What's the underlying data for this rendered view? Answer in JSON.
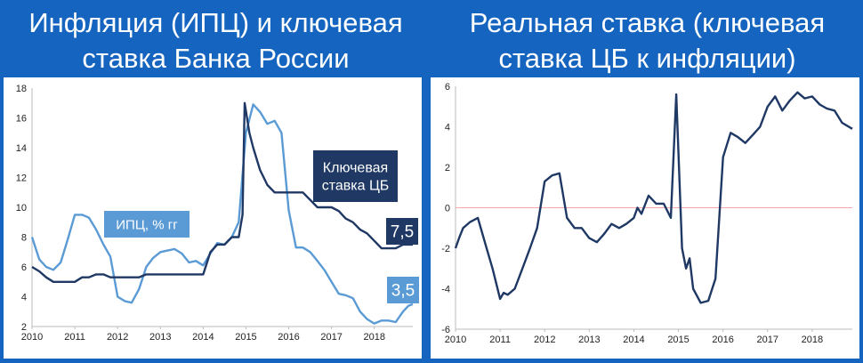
{
  "titles": {
    "left": "Инфляция (ИПЦ) и ключевая ставка Банка России",
    "right": "Реальная ставка (ключевая ставка ЦБ к инфляции)"
  },
  "chart_data": [
    {
      "type": "line",
      "title": "Инфляция (ИПЦ) и ключевая ставка Банка России",
      "ylim": [
        2,
        18
      ],
      "xlim": [
        2010,
        2018.9
      ],
      "yticks": [
        2,
        4,
        6,
        8,
        10,
        12,
        14,
        16,
        18
      ],
      "xticks": [
        "2010",
        "2011",
        "2012",
        "2013",
        "2014",
        "2015",
        "2016",
        "2017",
        "2018"
      ],
      "grid": false,
      "colors": {
        "cpi": "#5b9bd5",
        "key_rate": "#1f3864"
      },
      "series": [
        {
          "name": "ИПЦ, % гг",
          "label_box": "ИПЦ, % гг",
          "end_label": "3,5",
          "points": [
            [
              2010.0,
              8.0
            ],
            [
              2010.17,
              6.5
            ],
            [
              2010.33,
              6.0
            ],
            [
              2010.5,
              5.8
            ],
            [
              2010.67,
              6.3
            ],
            [
              2010.83,
              7.8
            ],
            [
              2011.0,
              9.5
            ],
            [
              2011.17,
              9.5
            ],
            [
              2011.33,
              9.3
            ],
            [
              2011.5,
              8.5
            ],
            [
              2011.67,
              7.5
            ],
            [
              2011.83,
              6.7
            ],
            [
              2012.0,
              4.0
            ],
            [
              2012.17,
              3.7
            ],
            [
              2012.33,
              3.6
            ],
            [
              2012.5,
              4.5
            ],
            [
              2012.67,
              6.0
            ],
            [
              2012.83,
              6.6
            ],
            [
              2013.0,
              7.0
            ],
            [
              2013.17,
              7.1
            ],
            [
              2013.33,
              7.2
            ],
            [
              2013.5,
              6.9
            ],
            [
              2013.67,
              6.3
            ],
            [
              2013.83,
              6.4
            ],
            [
              2014.0,
              6.1
            ],
            [
              2014.17,
              6.9
            ],
            [
              2014.33,
              7.6
            ],
            [
              2014.5,
              7.5
            ],
            [
              2014.67,
              8.0
            ],
            [
              2014.83,
              9.0
            ],
            [
              2015.0,
              15.0
            ],
            [
              2015.17,
              16.9
            ],
            [
              2015.33,
              16.4
            ],
            [
              2015.5,
              15.6
            ],
            [
              2015.67,
              15.8
            ],
            [
              2015.83,
              15.0
            ],
            [
              2016.0,
              9.8
            ],
            [
              2016.17,
              7.3
            ],
            [
              2016.33,
              7.3
            ],
            [
              2016.5,
              7.0
            ],
            [
              2016.67,
              6.4
            ],
            [
              2016.83,
              5.8
            ],
            [
              2017.0,
              5.0
            ],
            [
              2017.17,
              4.2
            ],
            [
              2017.33,
              4.1
            ],
            [
              2017.5,
              3.9
            ],
            [
              2017.67,
              3.0
            ],
            [
              2017.83,
              2.5
            ],
            [
              2018.0,
              2.2
            ],
            [
              2018.17,
              2.4
            ],
            [
              2018.33,
              2.4
            ],
            [
              2018.5,
              2.3
            ],
            [
              2018.67,
              3.0
            ],
            [
              2018.8,
              3.4
            ],
            [
              2018.9,
              3.5
            ]
          ]
        },
        {
          "name": "Ключевая ставка ЦБ",
          "label_box": "Ключевая ставка ЦБ",
          "end_label": "7,5",
          "points": [
            [
              2010.0,
              6.0
            ],
            [
              2010.17,
              5.7
            ],
            [
              2010.33,
              5.3
            ],
            [
              2010.5,
              5.0
            ],
            [
              2010.83,
              5.0
            ],
            [
              2011.0,
              5.0
            ],
            [
              2011.17,
              5.3
            ],
            [
              2011.33,
              5.3
            ],
            [
              2011.5,
              5.5
            ],
            [
              2011.67,
              5.5
            ],
            [
              2011.83,
              5.3
            ],
            [
              2012.0,
              5.3
            ],
            [
              2012.5,
              5.3
            ],
            [
              2012.67,
              5.5
            ],
            [
              2013.0,
              5.5
            ],
            [
              2013.5,
              5.5
            ],
            [
              2013.83,
              5.5
            ],
            [
              2014.0,
              5.5
            ],
            [
              2014.17,
              7.0
            ],
            [
              2014.33,
              7.5
            ],
            [
              2014.5,
              7.5
            ],
            [
              2014.67,
              8.0
            ],
            [
              2014.83,
              8.0
            ],
            [
              2014.92,
              9.5
            ],
            [
              2014.97,
              17.0
            ],
            [
              2015.08,
              15.0
            ],
            [
              2015.17,
              14.0
            ],
            [
              2015.33,
              12.5
            ],
            [
              2015.5,
              11.5
            ],
            [
              2015.67,
              11.0
            ],
            [
              2016.0,
              11.0
            ],
            [
              2016.33,
              11.0
            ],
            [
              2016.5,
              10.5
            ],
            [
              2016.67,
              10.0
            ],
            [
              2017.0,
              10.0
            ],
            [
              2017.17,
              9.75
            ],
            [
              2017.33,
              9.25
            ],
            [
              2017.5,
              9.0
            ],
            [
              2017.67,
              8.5
            ],
            [
              2017.83,
              8.25
            ],
            [
              2018.0,
              7.75
            ],
            [
              2018.17,
              7.25
            ],
            [
              2018.5,
              7.25
            ],
            [
              2018.67,
              7.5
            ],
            [
              2018.9,
              7.5
            ]
          ]
        }
      ]
    },
    {
      "type": "line",
      "title": "Реальная ставка (ключевая ставка ЦБ к инфляции)",
      "ylim": [
        -6,
        6
      ],
      "xlim": [
        2010,
        2018.9
      ],
      "yticks": [
        -6,
        -4,
        -2,
        0,
        2,
        4,
        6
      ],
      "xticks": [
        "2010",
        "2011",
        "2012",
        "2013",
        "2014",
        "2015",
        "2016",
        "2017",
        "2018"
      ],
      "grid": false,
      "zero_line": true,
      "colors": {
        "line": "#1f3864",
        "zero": "#f4a8a8"
      },
      "series": [
        {
          "points": [
            [
              2010.0,
              -2.0
            ],
            [
              2010.08,
              -1.5
            ],
            [
              2010.17,
              -1.0
            ],
            [
              2010.33,
              -0.7
            ],
            [
              2010.5,
              -0.5
            ],
            [
              2010.67,
              -1.8
            ],
            [
              2010.83,
              -3.0
            ],
            [
              2011.0,
              -4.5
            ],
            [
              2011.08,
              -4.2
            ],
            [
              2011.17,
              -4.3
            ],
            [
              2011.33,
              -4.0
            ],
            [
              2011.5,
              -3.0
            ],
            [
              2011.67,
              -2.0
            ],
            [
              2011.83,
              -1.0
            ],
            [
              2012.0,
              1.3
            ],
            [
              2012.17,
              1.6
            ],
            [
              2012.33,
              1.7
            ],
            [
              2012.5,
              -0.5
            ],
            [
              2012.67,
              -1.0
            ],
            [
              2012.83,
              -1.0
            ],
            [
              2013.0,
              -1.5
            ],
            [
              2013.17,
              -1.7
            ],
            [
              2013.33,
              -1.3
            ],
            [
              2013.5,
              -0.8
            ],
            [
              2013.67,
              -1.0
            ],
            [
              2013.83,
              -0.8
            ],
            [
              2014.0,
              -0.5
            ],
            [
              2014.08,
              0.0
            ],
            [
              2014.17,
              -0.3
            ],
            [
              2014.33,
              0.6
            ],
            [
              2014.5,
              0.2
            ],
            [
              2014.67,
              0.2
            ],
            [
              2014.83,
              -0.5
            ],
            [
              2014.95,
              5.6
            ],
            [
              2015.08,
              -2.0
            ],
            [
              2015.17,
              -3.0
            ],
            [
              2015.25,
              -2.5
            ],
            [
              2015.33,
              -4.0
            ],
            [
              2015.5,
              -4.7
            ],
            [
              2015.67,
              -4.6
            ],
            [
              2015.83,
              -3.5
            ],
            [
              2016.0,
              2.5
            ],
            [
              2016.17,
              3.7
            ],
            [
              2016.33,
              3.5
            ],
            [
              2016.5,
              3.2
            ],
            [
              2016.67,
              3.6
            ],
            [
              2016.83,
              4.0
            ],
            [
              2017.0,
              5.0
            ],
            [
              2017.17,
              5.5
            ],
            [
              2017.33,
              4.8
            ],
            [
              2017.5,
              5.3
            ],
            [
              2017.67,
              5.7
            ],
            [
              2017.83,
              5.4
            ],
            [
              2018.0,
              5.5
            ],
            [
              2018.17,
              5.1
            ],
            [
              2018.33,
              4.9
            ],
            [
              2018.5,
              4.8
            ],
            [
              2018.67,
              4.2
            ],
            [
              2018.9,
              3.9
            ]
          ]
        }
      ]
    }
  ]
}
